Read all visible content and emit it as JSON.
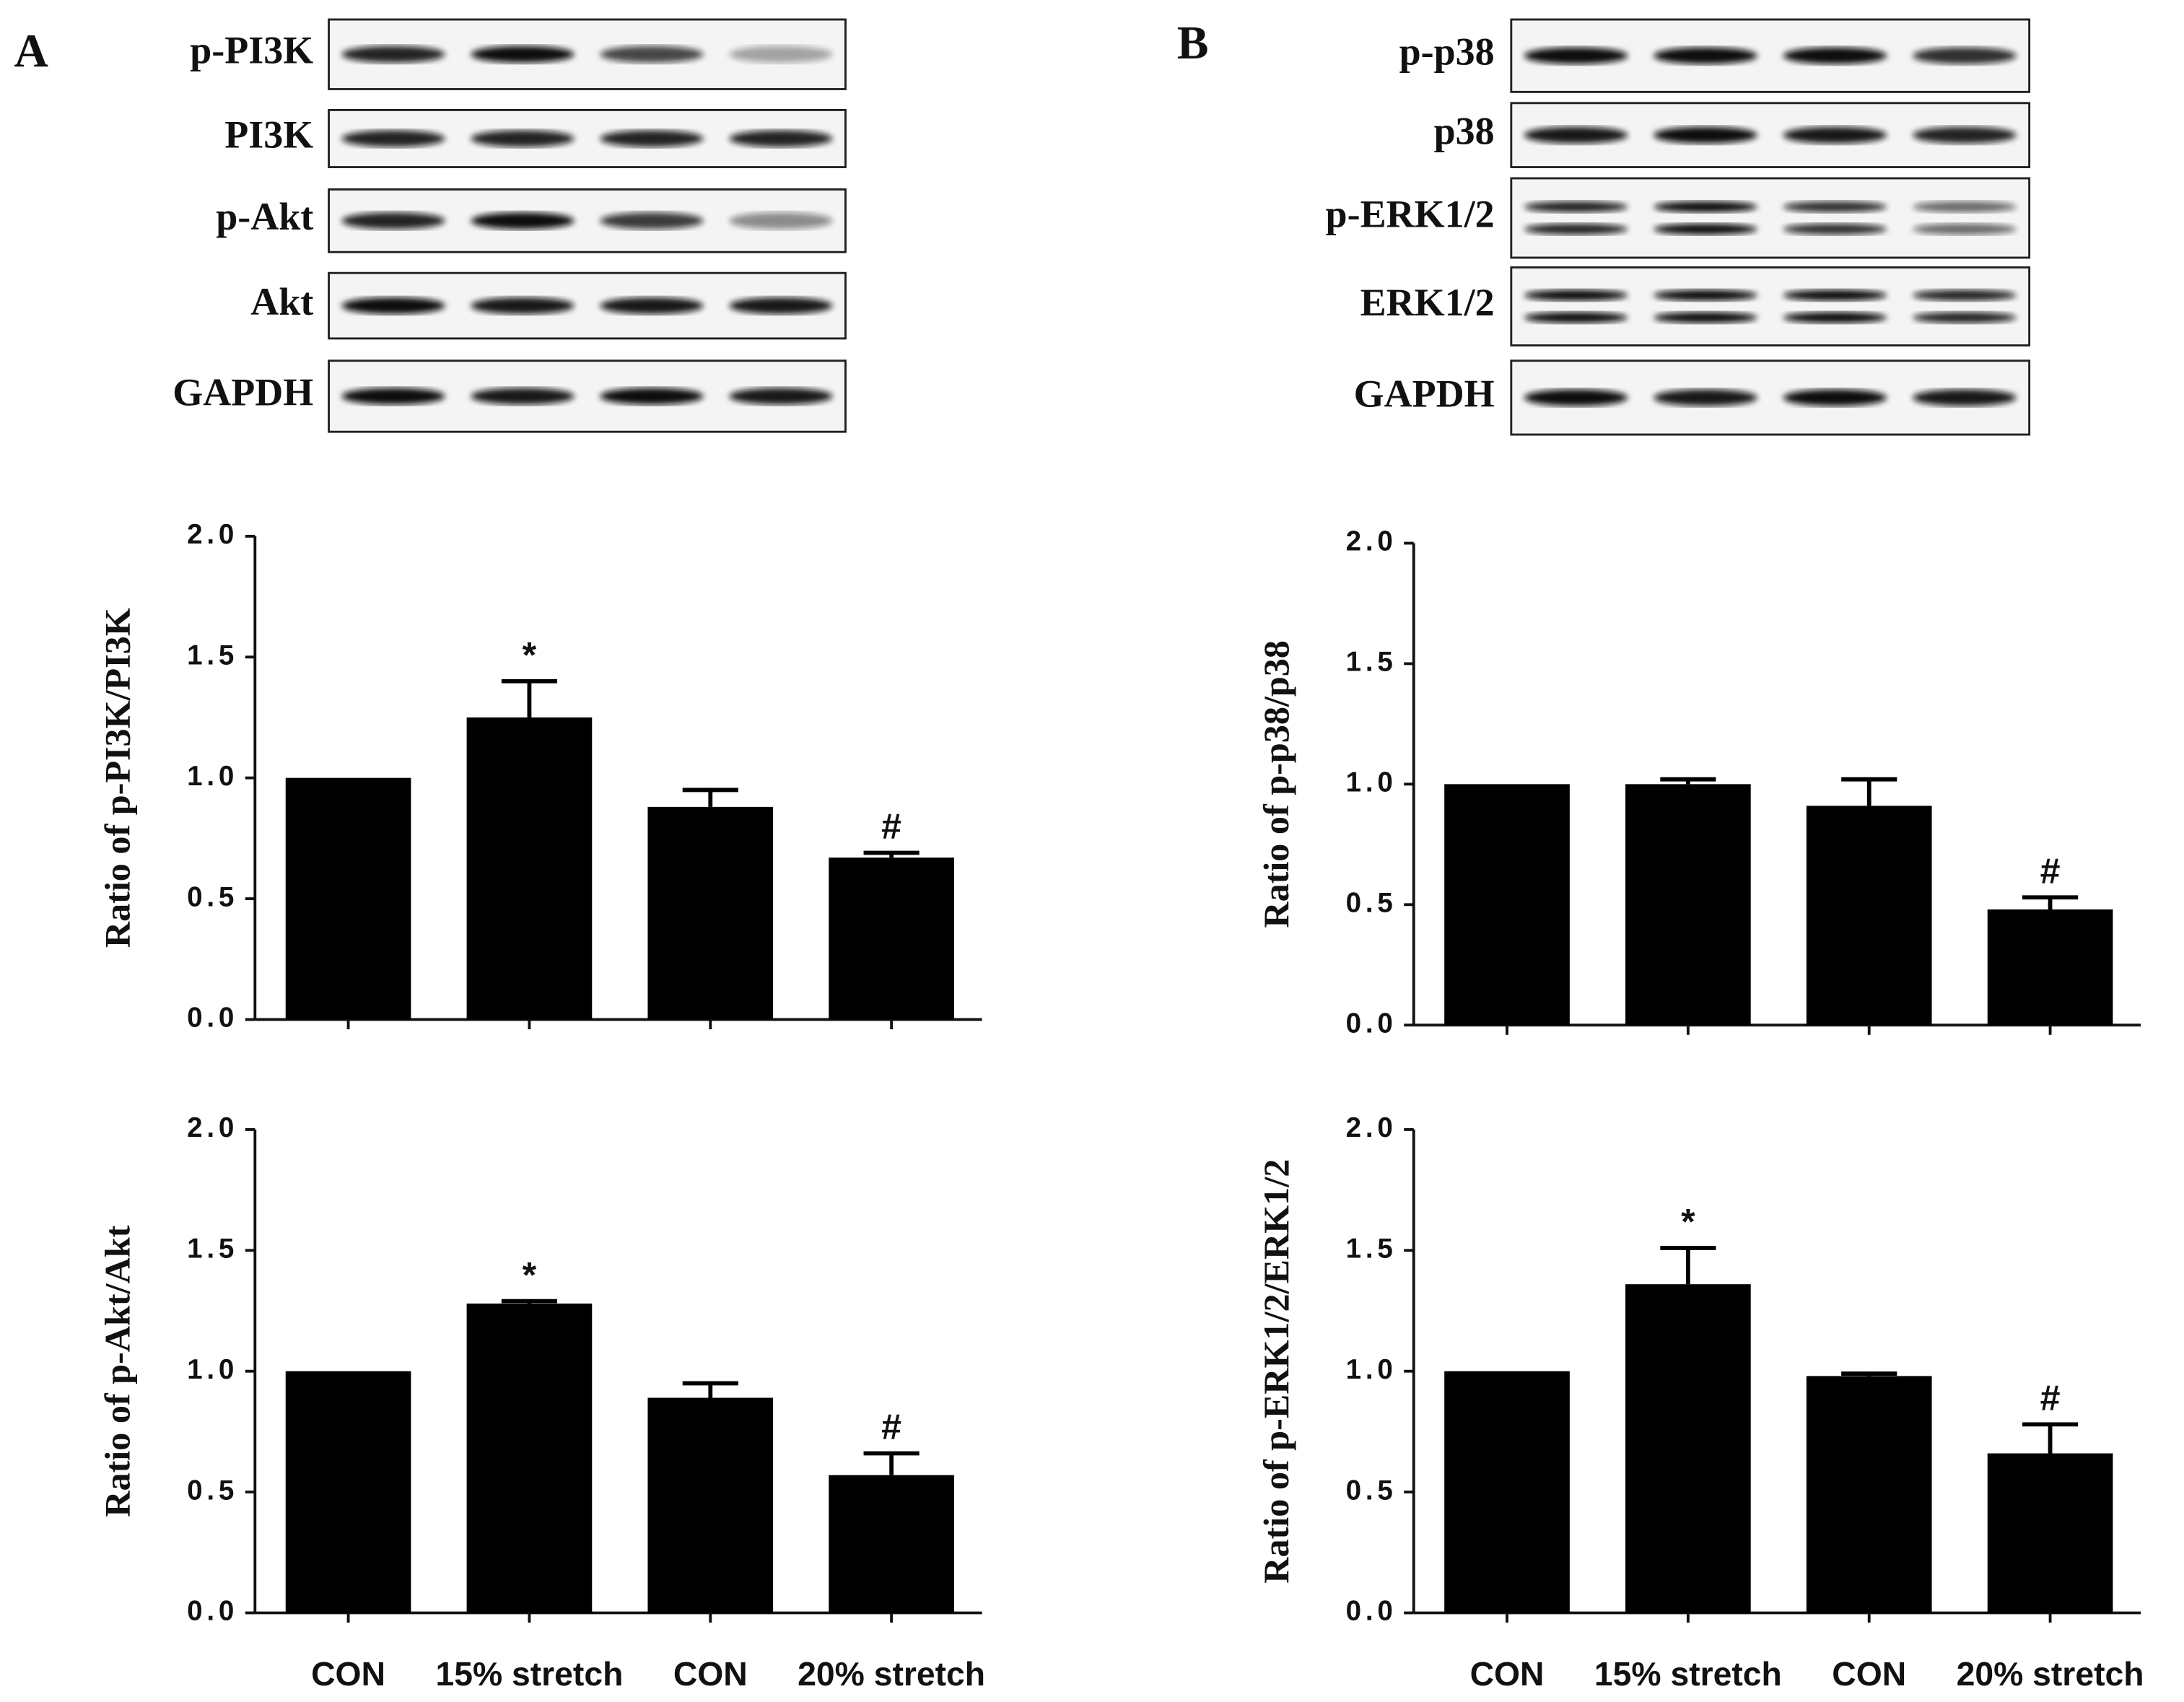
{
  "panels": [
    {
      "label": "A",
      "blots": [
        "p-PI3K",
        "PI3K",
        "p-Akt",
        "Akt",
        "GAPDH"
      ]
    },
    {
      "label": "B",
      "blots": [
        "p-p38",
        "p38",
        "p-ERK1/2",
        "ERK1/2",
        "GAPDH"
      ]
    }
  ],
  "chart_data": [
    {
      "type": "bar",
      "ylabel": "Ratio of p-PI3K/PI3K",
      "categories": [
        null,
        null,
        null,
        null
      ],
      "values": [
        1.0,
        1.25,
        0.88,
        0.67
      ],
      "errors": [
        0,
        0.15,
        0.07,
        0.02
      ],
      "markers": [
        null,
        "*",
        null,
        "#"
      ],
      "color": "#000000",
      "ylim": [
        0,
        2
      ],
      "yticks": [
        {
          "value": 0,
          "label": "0.0"
        },
        {
          "value": 0.5,
          "label": "0.5"
        },
        {
          "value": 1,
          "label": "1.0"
        },
        {
          "value": 1.5,
          "label": "1.5"
        },
        {
          "value": 2,
          "label": "2.0"
        }
      ]
    },
    {
      "type": "bar",
      "ylabel": "Ratio of p-p38/p38",
      "categories": [
        null,
        null,
        null,
        null
      ],
      "values": [
        1.0,
        1.0,
        0.91,
        0.48
      ],
      "errors": [
        0,
        0.02,
        0.11,
        0.05
      ],
      "markers": [
        null,
        null,
        null,
        "#"
      ],
      "color": "#000000",
      "ylim": [
        0,
        2
      ],
      "yticks": [
        {
          "value": 0,
          "label": "0.0"
        },
        {
          "value": 0.5,
          "label": "0.5"
        },
        {
          "value": 1,
          "label": "1.0"
        },
        {
          "value": 1.5,
          "label": "1.5"
        },
        {
          "value": 2,
          "label": "2.0"
        }
      ]
    },
    {
      "type": "bar",
      "ylabel": "Ratio of p-Akt/Akt",
      "categories": [
        "CON",
        "15% stretch",
        "CON",
        "20% stretch"
      ],
      "values": [
        1.0,
        1.28,
        0.89,
        0.57
      ],
      "errors": [
        0,
        0.01,
        0.06,
        0.09
      ],
      "markers": [
        null,
        "*",
        null,
        "#"
      ],
      "color": "#000000",
      "ylim": [
        0,
        2
      ],
      "yticks": [
        {
          "value": 0,
          "label": "0.0"
        },
        {
          "value": 0.5,
          "label": "0.5"
        },
        {
          "value": 1,
          "label": "1.0"
        },
        {
          "value": 1.5,
          "label": "1.5"
        },
        {
          "value": 2,
          "label": "2.0"
        }
      ]
    },
    {
      "type": "bar",
      "ylabel": "Ratio of p-ERK1/2/ERK1/2",
      "categories": [
        "CON",
        "15% stretch",
        "CON",
        "20% stretch"
      ],
      "values": [
        1.0,
        1.36,
        0.98,
        0.66
      ],
      "errors": [
        0,
        0.15,
        0.01,
        0.12
      ],
      "markers": [
        null,
        "*",
        null,
        "#"
      ],
      "color": "#000000",
      "ylim": [
        0,
        2
      ],
      "yticks": [
        {
          "value": 0,
          "label": "0.0"
        },
        {
          "value": 0.5,
          "label": "0.5"
        },
        {
          "value": 1,
          "label": "1.0"
        },
        {
          "value": 1.5,
          "label": "1.5"
        },
        {
          "value": 2,
          "label": "2.0"
        }
      ]
    }
  ]
}
